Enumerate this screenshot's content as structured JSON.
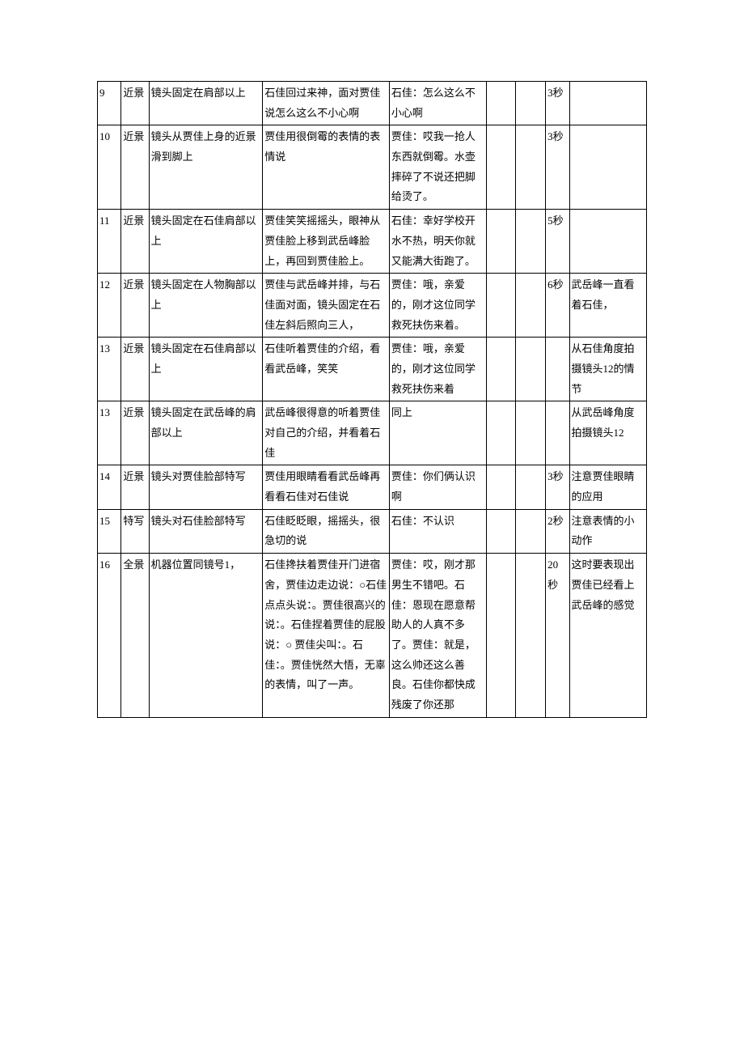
{
  "rows": [
    {
      "num": "9",
      "shot": "近景",
      "camera": "镜头固定在肩部以上",
      "content": "石佳回过来神，面对贾佳说怎么这么不小心啊",
      "dialog": "石佳：怎么这么不小心啊",
      "e1": "",
      "e2": "",
      "time": "3秒",
      "note": ""
    },
    {
      "num": "10",
      "shot": "近景",
      "camera": "镜头从贾佳上身的近景滑到脚上",
      "content": "贾佳用很倒霉的表情的表情说",
      "dialog": "贾佳：哎我一抢人东西就倒霉。水壶摔碎了不说还把脚给烫了。",
      "e1": "",
      "e2": "",
      "time": "3秒",
      "note": ""
    },
    {
      "num": "11",
      "shot": "近景",
      "camera": "镜头固定在石佳肩部以上",
      "content": "贾佳笑笑摇摇头，眼神从贾佳脸上移到武岳峰脸上，再回到贾佳脸上。",
      "dialog": "石佳：幸好学校开水不热，明天你就又能满大街跑了。",
      "e1": "",
      "e2": "",
      "time": "5秒",
      "note": ""
    },
    {
      "num": "12",
      "shot": "近景",
      "camera": "镜头固定在人物胸部以上",
      "content": "贾佳与武岳峰并排，与石佳面对面，镜头固定在石佳左斜后照向三人，",
      "dialog": "贾佳：哦，亲爱的，刚才这位同学救死扶伤来着。",
      "e1": "",
      "e2": "",
      "time": "6秒",
      "note": "武岳峰一直看着石佳，"
    },
    {
      "num": "13",
      "shot": "近景",
      "camera": "镜头固定在石佳肩部以上",
      "content": "石佳听着贾佳的介绍，看看武岳峰，笑笑",
      "dialog": "贾佳：哦，亲爱的，刚才这位同学救死扶伤来着",
      "e1": "",
      "e2": "",
      "time": "",
      "note": "从石佳角度拍摄镜头12的情节"
    },
    {
      "num": "13",
      "shot": "近景",
      "camera": "镜头固定在武岳峰的肩部以上",
      "content": "武岳峰很得意的听着贾佳对自己的介绍，并看着石佳",
      "dialog": "同上",
      "e1": "",
      "e2": "",
      "time": "",
      "note": "从武岳峰角度拍摄镜头12"
    },
    {
      "num": "14",
      "shot": "近景",
      "camera": "镜头对贾佳脸部特写",
      "content": "贾佳用眼睛看看武岳峰再看看石佳对石佳说",
      "dialog": "贾佳：你们俩认识啊",
      "e1": "",
      "e2": "",
      "time": "3秒",
      "note": "注意贾佳眼睛的应用"
    },
    {
      "num": "15",
      "shot": "特写",
      "camera": "镜头对石佳脸部特写",
      "content": "石佳眨眨眼，摇摇头，很急切的说",
      "dialog": "石佳：不认识",
      "e1": "",
      "e2": "",
      "time": "2秒",
      "note": "注意表情的小动作"
    },
    {
      "num": "16",
      "shot": "全景",
      "camera": "机器位置同镜号1，",
      "content": "石佳搀扶着贾佳开门进宿舍，贾佳边走边说：○石佳点点头说：。贾佳很高兴的说：。石佳捏着贾佳的屁股说：○ 贾佳尖叫：。石佳：。贾佳恍然大悟，无辜的表情，叫了一声。",
      "dialog": "贾佳：哎，刚才那男生不错吧。石佳：恩现在愿意帮助人的人真不多了。贾佳：就是，这么帅还这么善良。石佳你都快成残废了你还那",
      "e1": "",
      "e2": "",
      "time": "20秒",
      "note": "这时要表现出贾佳已经看上武岳峰的感觉"
    }
  ]
}
